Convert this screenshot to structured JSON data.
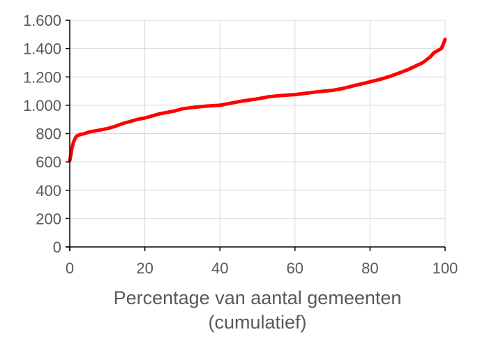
{
  "chart_data": {
    "type": "line",
    "title": "",
    "xlabel_lines": [
      "Percentage van aantal gemeenten",
      "(cumulatief)"
    ],
    "ylabel": "",
    "xlim": [
      0,
      100
    ],
    "ylim": [
      0,
      1600
    ],
    "x_ticks": [
      0,
      20,
      40,
      60,
      80,
      100
    ],
    "x_tick_labels": [
      "0",
      "20",
      "40",
      "60",
      "80",
      "100"
    ],
    "y_ticks": [
      0,
      200,
      400,
      600,
      800,
      1000,
      1200,
      1400,
      1600
    ],
    "y_tick_labels": [
      "0",
      "200",
      "400",
      "600",
      "800",
      "1.000",
      "1.200",
      "1.400",
      "1.600"
    ],
    "grid": {
      "vertical": true,
      "horizontal": true
    },
    "legend": "none",
    "series": [
      {
        "color": "#ff0000",
        "x": [
          0,
          0.3,
          0.6,
          1,
          1.5,
          2,
          3,
          4,
          5,
          7,
          9,
          10,
          12,
          14,
          16,
          18,
          20,
          22,
          24,
          26,
          28,
          30,
          33,
          36,
          40,
          43,
          46,
          50,
          53,
          56,
          60,
          63,
          66,
          70,
          73,
          76,
          80,
          83,
          86,
          90,
          92,
          94,
          96,
          97,
          98,
          99,
          99.5,
          100
        ],
        "y": [
          610,
          650,
          700,
          740,
          770,
          785,
          795,
          800,
          810,
          820,
          830,
          835,
          850,
          870,
          885,
          900,
          910,
          925,
          940,
          950,
          960,
          975,
          985,
          993,
          1000,
          1015,
          1030,
          1045,
          1060,
          1068,
          1075,
          1085,
          1095,
          1105,
          1120,
          1140,
          1165,
          1185,
          1210,
          1250,
          1275,
          1300,
          1340,
          1370,
          1385,
          1400,
          1430,
          1465
        ]
      }
    ]
  }
}
